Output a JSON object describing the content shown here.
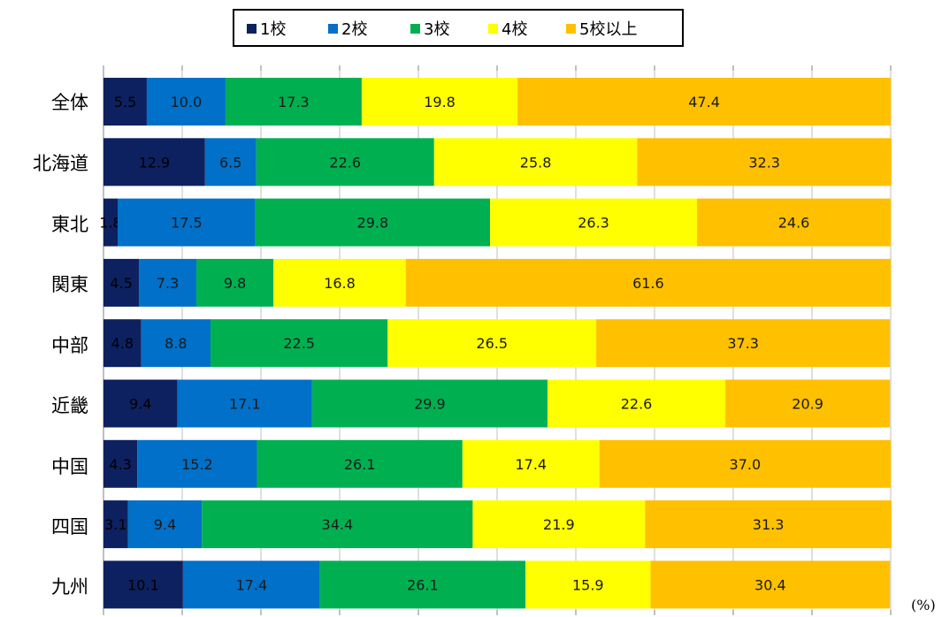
{
  "chart_data": {
    "type": "bar",
    "orientation": "horizontal",
    "stacked": true,
    "percent": true,
    "unit": "(%)",
    "xlim": [
      0,
      100
    ],
    "legend_position": "top",
    "categories": [
      "全体",
      "北海道",
      "東北",
      "関東",
      "中部",
      "近畿",
      "中国",
      "四国",
      "九州"
    ],
    "series": [
      {
        "name": "1校",
        "color": "#0D2160",
        "values": [
          5.5,
          12.9,
          1.8,
          4.5,
          4.8,
          9.4,
          4.3,
          3.1,
          10.1
        ]
      },
      {
        "name": "2校",
        "color": "#0070C8",
        "values": [
          10.0,
          6.5,
          17.5,
          7.3,
          8.8,
          17.1,
          15.2,
          9.4,
          17.4
        ]
      },
      {
        "name": "3校",
        "color": "#00B050",
        "values": [
          17.3,
          22.6,
          29.8,
          9.8,
          22.5,
          29.9,
          26.1,
          34.4,
          26.1
        ]
      },
      {
        "name": "4校",
        "color": "#FFFF00",
        "values": [
          19.8,
          25.8,
          26.3,
          16.8,
          26.5,
          22.6,
          17.4,
          21.9,
          15.9
        ]
      },
      {
        "name": "5校以上",
        "color": "#FFC000",
        "values": [
          47.4,
          32.3,
          24.6,
          61.6,
          37.3,
          20.9,
          37.0,
          31.3,
          30.4
        ]
      }
    ],
    "grid": true
  }
}
